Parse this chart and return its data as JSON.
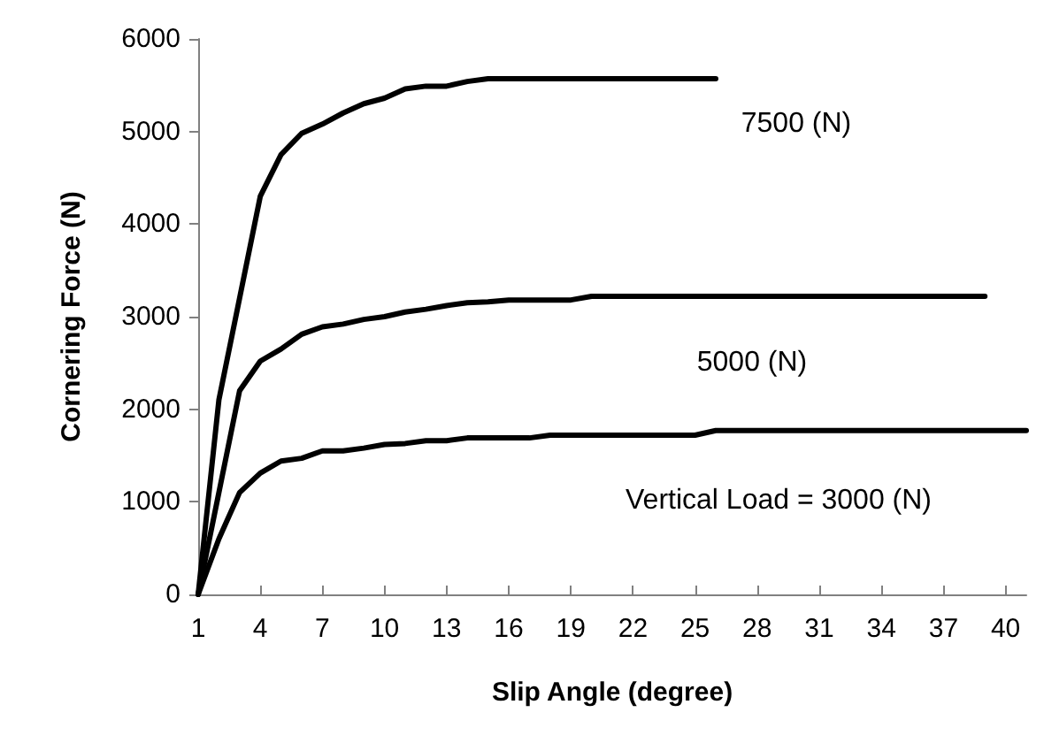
{
  "chart_data": {
    "type": "line",
    "xlabel": "Slip Angle (degree)",
    "ylabel": "Cornering Force (N)",
    "x": [
      1,
      2,
      3,
      4,
      5,
      6,
      7,
      8,
      9,
      10,
      11,
      12,
      13,
      14,
      15,
      16,
      17,
      18,
      19,
      20,
      21,
      22,
      23,
      24,
      25,
      26,
      27,
      28,
      29,
      30,
      31,
      32,
      33,
      34,
      35,
      36,
      37,
      38,
      39,
      40,
      41
    ],
    "series": [
      {
        "color": "#000000",
        "values": [
          0,
          2100,
          3200,
          4300,
          4750,
          4980,
          5080,
          5200,
          5300,
          5360,
          5460,
          5490,
          5490,
          5540,
          5570,
          5570,
          5570,
          5570,
          5570,
          5570,
          5570,
          5570,
          5570,
          5570,
          5570,
          5570,
          null,
          null,
          null,
          null,
          null,
          null,
          null,
          null,
          null,
          null,
          null,
          null,
          null,
          null,
          null
        ]
      },
      {
        "color": "#000000",
        "values": [
          0,
          1100,
          2200,
          2520,
          2650,
          2810,
          2890,
          2920,
          2970,
          3000,
          3050,
          3080,
          3120,
          3150,
          3160,
          3180,
          3180,
          3180,
          3180,
          3220,
          3220,
          3220,
          3220,
          3220,
          3220,
          3220,
          3220,
          3220,
          3220,
          3220,
          3220,
          3220,
          3220,
          3220,
          3220,
          3220,
          3220,
          3220,
          3220,
          null,
          null
        ]
      },
      {
        "color": "#000000",
        "values": [
          0,
          600,
          1100,
          1310,
          1440,
          1470,
          1550,
          1550,
          1580,
          1620,
          1630,
          1660,
          1660,
          1690,
          1690,
          1690,
          1690,
          1720,
          1720,
          1720,
          1720,
          1720,
          1720,
          1720,
          1720,
          1770,
          1770,
          1770,
          1770,
          1770,
          1770,
          1770,
          1770,
          1770,
          1770,
          1770,
          1770,
          1770,
          1770,
          1770,
          1770
        ]
      }
    ],
    "annotations": [
      "7500 (N)",
      "5000 (N)",
      "Vertical Load = 3000 (N)"
    ],
    "xlim": [
      1,
      41
    ],
    "xticks": [
      1,
      4,
      7,
      10,
      13,
      16,
      19,
      22,
      25,
      28,
      31,
      34,
      37,
      40
    ],
    "ylim": [
      0,
      6000
    ],
    "yticks": [
      0,
      1000,
      2000,
      3000,
      4000,
      5000,
      6000
    ],
    "grid": false,
    "marker": "none",
    "line_style": "solid"
  }
}
